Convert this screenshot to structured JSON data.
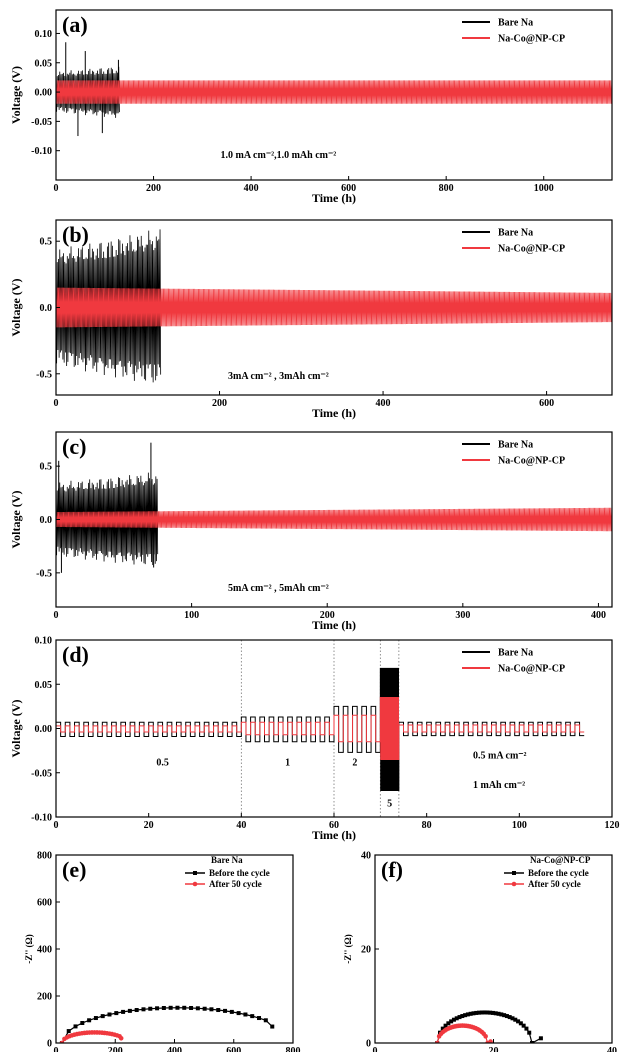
{
  "colors": {
    "bare": "#000000",
    "coated": "#f0393f"
  },
  "chart_data": [
    {
      "id": "a",
      "type": "line",
      "panel_label": "(a)",
      "xlabel": "Time (h)",
      "ylabel": "Voltage (V)",
      "xlim": [
        0,
        1140
      ],
      "ylim": [
        -0.15,
        0.14
      ],
      "xticks": [
        0,
        200,
        400,
        600,
        800,
        1000
      ],
      "yticks": [
        -0.1,
        -0.05,
        0.0,
        0.05,
        0.1
      ],
      "ytick_labels": [
        "-0.10",
        "-0.05",
        "0.00",
        "0.05",
        "0.10"
      ],
      "legend_position": "top-right",
      "annotation": "1.0 mA cm⁻²,1.0 mAh cm⁻²",
      "series": [
        {
          "name": "Bare Na",
          "color": "#000000",
          "t_end": 130,
          "amp_start": 0.035,
          "amp_end": 0.045,
          "spikes": [
            [
              20,
              0.085
            ],
            [
              45,
              -0.075
            ],
            [
              60,
              0.07
            ],
            [
              95,
              -0.07
            ],
            [
              128,
              0.055
            ]
          ]
        },
        {
          "name": "Na-Co@NP-CP",
          "color": "#f0393f",
          "t_end": 1140,
          "amp_start": 0.02,
          "amp_end": 0.02
        }
      ]
    },
    {
      "id": "b",
      "type": "line",
      "panel_label": "(b)",
      "xlabel": "Time (h)",
      "ylabel": "Voltage (V)",
      "xlim": [
        0,
        680
      ],
      "ylim": [
        -0.66,
        0.66
      ],
      "xticks": [
        0,
        200,
        400,
        600
      ],
      "yticks": [
        -0.5,
        0.0,
        0.5
      ],
      "ytick_labels": [
        "-0.5",
        "0.0",
        "0.5"
      ],
      "legend_position": "top-right",
      "annotation": "3mA cm⁻² , 3mAh cm⁻²",
      "series": [
        {
          "name": "Bare Na",
          "color": "#000000",
          "t_end": 128,
          "amp_start": 0.44,
          "amp_end": 0.6
        },
        {
          "name": "Na-Co@NP-CP",
          "color": "#f0393f",
          "t_end": 680,
          "amp_start": 0.15,
          "amp_end": 0.11
        }
      ]
    },
    {
      "id": "c",
      "type": "line",
      "panel_label": "(c)",
      "xlabel": "Time (h)",
      "ylabel": "Voltage (V)",
      "xlim": [
        0,
        410
      ],
      "ylim": [
        -0.82,
        0.82
      ],
      "xticks": [
        0,
        100,
        200,
        300,
        400
      ],
      "yticks": [
        -0.5,
        0.0,
        0.5
      ],
      "ytick_labels": [
        "-0.5",
        "0.0",
        "0.5"
      ],
      "legend_position": "top-right",
      "annotation": "5mA cm⁻² , 5mAh cm⁻²",
      "series": [
        {
          "name": "Bare Na",
          "color": "#000000",
          "t_end": 75,
          "amp_start": 0.35,
          "amp_end": 0.45,
          "spikes": [
            [
              2,
              0.55
            ],
            [
              4,
              -0.5
            ],
            [
              70,
              0.72
            ],
            [
              72,
              -0.45
            ]
          ]
        },
        {
          "name": "Na-Co@NP-CP",
          "color": "#f0393f",
          "t_end": 410,
          "amp_start": 0.07,
          "amp_end": 0.11
        }
      ]
    },
    {
      "id": "d",
      "type": "line",
      "panel_label": "(d)",
      "xlabel": "Time (h)",
      "ylabel": "Voltage (V)",
      "xlim": [
        0,
        120
      ],
      "ylim": [
        -0.1,
        0.1
      ],
      "xticks": [
        0,
        20,
        40,
        60,
        80,
        100,
        120
      ],
      "yticks": [
        -0.1,
        -0.05,
        0.0,
        0.05,
        0.1
      ],
      "ytick_labels": [
        "-0.10",
        "-0.05",
        "0.00",
        "0.05",
        "0.10"
      ],
      "legend_position": "top-right",
      "rate_dividers": [
        40,
        60,
        70,
        74
      ],
      "rate_labels": [
        {
          "text": "0.5",
          "x": 23,
          "y": -0.042
        },
        {
          "text": "1",
          "x": 50,
          "y": -0.042
        },
        {
          "text": "2",
          "x": 64.5,
          "y": -0.042
        },
        {
          "text": "5",
          "x": 72,
          "y": -0.088
        },
        {
          "text": "0.5 mA cm⁻²",
          "x": 90,
          "y": -0.034
        },
        {
          "text": "1 mAh cm⁻²",
          "x": 90,
          "y": -0.067
        }
      ],
      "segments": [
        {
          "t0": 0,
          "t1": 40,
          "bare": [
            0.007,
            -0.009
          ],
          "coated": [
            0.003,
            -0.004
          ]
        },
        {
          "t0": 40,
          "t1": 60,
          "bare": [
            0.013,
            -0.015
          ],
          "coated": [
            0.007,
            -0.007
          ]
        },
        {
          "t0": 60,
          "t1": 70,
          "bare": [
            0.025,
            -0.027
          ],
          "coated": [
            0.015,
            -0.015
          ]
        },
        {
          "t0": 70,
          "t1": 74,
          "bare": [
            0.068,
            -0.07
          ],
          "coated": [
            0.035,
            -0.035
          ]
        },
        {
          "t0": 74,
          "t1": 114,
          "bare": [
            0.007,
            -0.008
          ],
          "coated": [
            0.004,
            -0.004
          ]
        }
      ],
      "series": [
        {
          "name": "Bare Na",
          "color": "#000000"
        },
        {
          "name": "Na-Co@NP-CP",
          "color": "#f0393f"
        }
      ]
    },
    {
      "id": "e",
      "type": "scatter",
      "panel_label": "(e)",
      "xlabel": "Z' (Ω)",
      "ylabel": "-Z'' (Ω)",
      "xlim": [
        0,
        800
      ],
      "ylim": [
        0,
        800
      ],
      "xticks": [
        0,
        200,
        400,
        600,
        800
      ],
      "yticks": [
        0,
        200,
        400,
        600,
        800
      ],
      "ytick_labels": [
        "0",
        "200",
        "400",
        "600",
        "800"
      ],
      "legend_title": "Bare Na",
      "legend_position": "top-right",
      "series": [
        {
          "name": "Before the cycle",
          "color": "#000000",
          "arc": {
            "x0": 20,
            "x1": 800,
            "h": 150,
            "xmax": 730,
            "tail_y": 70
          }
        },
        {
          "name": "After 50 cycle",
          "color": "#f0393f",
          "arc": {
            "x0": 20,
            "x1": 240,
            "h": 45,
            "xmax": 220,
            "tail_y": 20
          }
        }
      ]
    },
    {
      "id": "f",
      "type": "scatter",
      "panel_label": "(f)",
      "xlabel": "Z' (Ω)",
      "ylabel": "-Z'' (Ω)",
      "xlim": [
        0,
        40
      ],
      "ylim": [
        0,
        40
      ],
      "xticks": [
        0,
        20,
        40
      ],
      "yticks": [
        0,
        20,
        40
      ],
      "ytick_labels": [
        "0",
        "20",
        "40"
      ],
      "legend_title": "Na-Co@NP-CP",
      "legend_position": "top-right",
      "series": [
        {
          "name": "Before the cycle",
          "color": "#000000",
          "arc": {
            "x0": 10.5,
            "x1": 26.5,
            "h": 6.5,
            "xmax": 28,
            "tail_y": 1
          }
        },
        {
          "name": "After 50 cycle",
          "color": "#f0393f",
          "arc": {
            "x0": 10.5,
            "x1": 19,
            "h": 3.7,
            "xmax": 19.5,
            "tail_y": 0.3
          }
        }
      ]
    }
  ]
}
